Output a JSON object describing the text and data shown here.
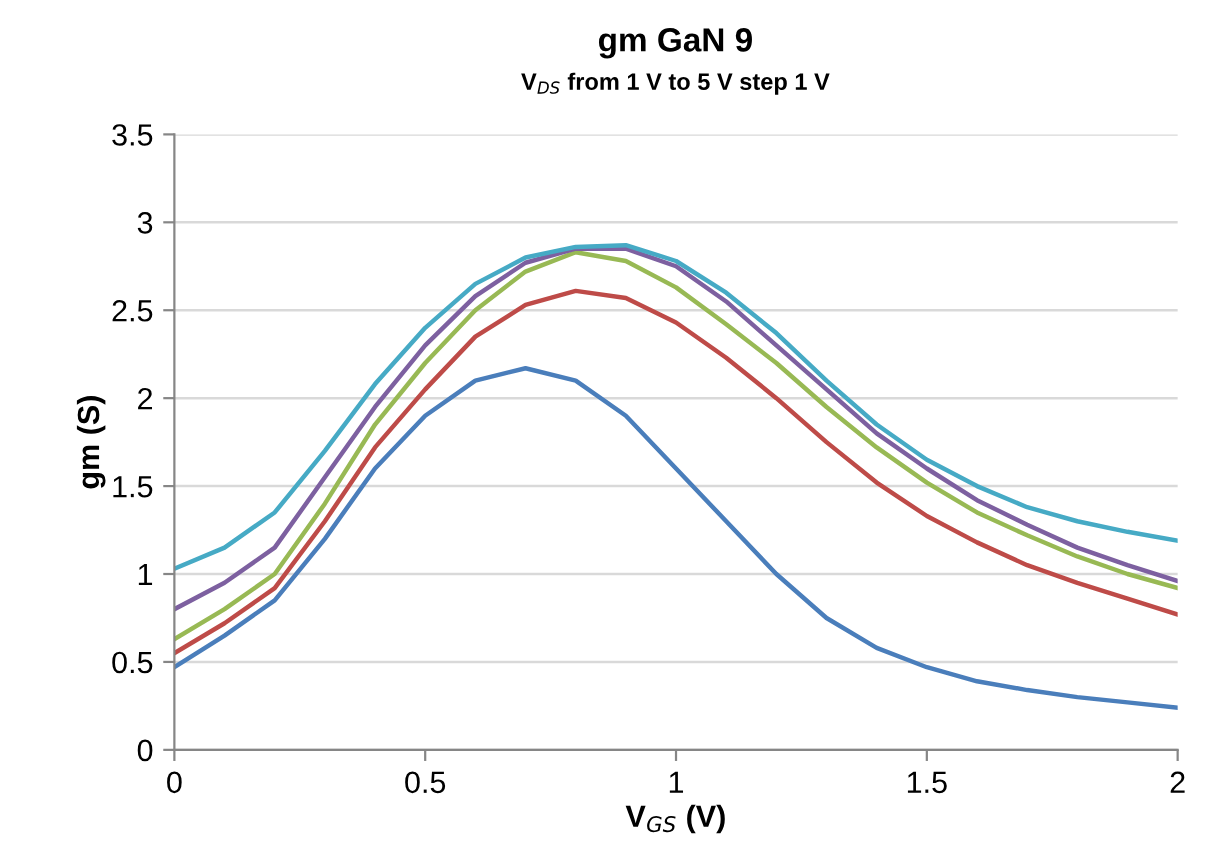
{
  "chart_data": {
    "type": "line",
    "title": "gm GaN 9",
    "subtitle": "V$_{DS}$ from 1 V to 5 V step 1 V",
    "xlabel": "V$_{GS}$ (V)",
    "ylabel": "gm (S)",
    "x": [
      0,
      0.1,
      0.2,
      0.3,
      0.4,
      0.5,
      0.6,
      0.7,
      0.8,
      0.9,
      1.0,
      1.1,
      1.2,
      1.3,
      1.4,
      1.5,
      1.6,
      1.7,
      1.8,
      1.9,
      2.0
    ],
    "series": [
      {
        "color": "#4a7ebb",
        "values": [
          0.47,
          0.65,
          0.85,
          1.2,
          1.6,
          1.9,
          2.1,
          2.17,
          2.1,
          1.9,
          1.6,
          1.3,
          1.0,
          0.75,
          0.58,
          0.47,
          0.39,
          0.34,
          0.3,
          0.27,
          0.24
        ]
      },
      {
        "color": "#be4b48",
        "values": [
          0.55,
          0.72,
          0.92,
          1.3,
          1.72,
          2.05,
          2.35,
          2.53,
          2.61,
          2.57,
          2.43,
          2.23,
          2.0,
          1.75,
          1.52,
          1.33,
          1.18,
          1.05,
          0.95,
          0.86,
          0.77
        ]
      },
      {
        "color": "#98b954",
        "values": [
          0.63,
          0.8,
          1.0,
          1.4,
          1.85,
          2.2,
          2.5,
          2.72,
          2.83,
          2.78,
          2.63,
          2.42,
          2.2,
          1.95,
          1.72,
          1.52,
          1.35,
          1.22,
          1.1,
          1.0,
          0.92
        ]
      },
      {
        "color": "#7d60a0",
        "values": [
          0.8,
          0.95,
          1.15,
          1.55,
          1.95,
          2.3,
          2.58,
          2.77,
          2.85,
          2.85,
          2.75,
          2.55,
          2.3,
          2.05,
          1.8,
          1.6,
          1.42,
          1.28,
          1.15,
          1.05,
          0.96
        ]
      },
      {
        "color": "#46aac5",
        "values": [
          1.03,
          1.15,
          1.35,
          1.7,
          2.08,
          2.4,
          2.65,
          2.8,
          2.86,
          2.87,
          2.78,
          2.6,
          2.37,
          2.1,
          1.85,
          1.65,
          1.5,
          1.38,
          1.3,
          1.24,
          1.19
        ]
      }
    ],
    "xlim": [
      0,
      2
    ],
    "xticks": [
      0,
      0.5,
      1,
      1.5,
      2
    ],
    "ylim": [
      0,
      3.5
    ],
    "yticks": [
      0,
      0.5,
      1,
      1.5,
      2,
      2.5,
      3,
      3.5
    ],
    "grid": "y",
    "marker": "none",
    "line_style": "solid"
  }
}
